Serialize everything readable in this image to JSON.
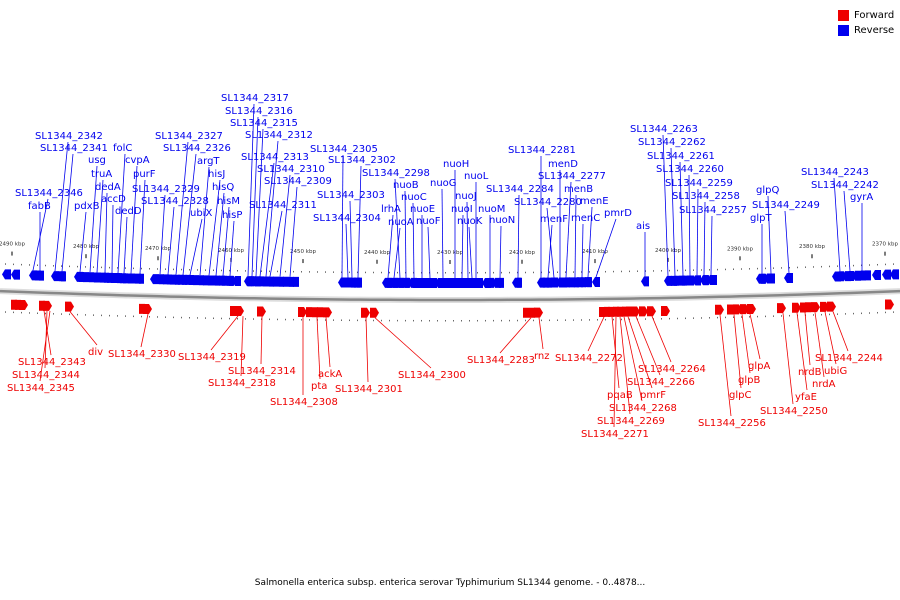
{
  "legend": {
    "forward_label": "Forward",
    "reverse_label": "Reverse",
    "forward_color": "#ee0000",
    "reverse_color": "#0000ee"
  },
  "colors": {
    "axis": "#999999",
    "label_line": "#ee0000",
    "label_line_rev": "#0000ee"
  },
  "caption": "Salmonella enterica subsp. enterica serovar Typhimurium SL1344 genome. - 0..4878...",
  "scale_labels": [
    "2490 kbp",
    "2480 kbp",
    "2470 kbp",
    "2460 kbp",
    "2450 kbp",
    "2440 kbp",
    "2430 kbp",
    "2420 kbp",
    "2410 kbp",
    "2400 kbp",
    "2390 kbp",
    "2380 kbp",
    "2370 kbp"
  ],
  "reverse_genes": [
    {
      "label": "SL1344_2346",
      "gx": 33
    },
    {
      "label": "fabB",
      "gx": 40
    },
    {
      "label": "SL1344_2342",
      "gx": 55
    },
    {
      "label": "SL1344_2341",
      "gx": 62
    },
    {
      "label": "pdxB",
      "gx": 80
    },
    {
      "label": "usg",
      "gx": 90
    },
    {
      "label": "truA",
      "gx": 97
    },
    {
      "label": "dedA",
      "gx": 105
    },
    {
      "label": "accD",
      "gx": 112
    },
    {
      "label": "folC",
      "gx": 118
    },
    {
      "label": "dedD",
      "gx": 124
    },
    {
      "label": "cvpA",
      "gx": 131
    },
    {
      "label": "purF",
      "gx": 140
    },
    {
      "label": "SL1344_2329",
      "gx": 160
    },
    {
      "label": "SL1344_2328",
      "gx": 168
    },
    {
      "label": "SL1344_2327",
      "gx": 176
    },
    {
      "label": "SL1344_2326",
      "gx": 183
    },
    {
      "label": "ubiX",
      "gx": 190
    },
    {
      "label": "argT",
      "gx": 200
    },
    {
      "label": "hisJ",
      "gx": 209
    },
    {
      "label": "hisQ",
      "gx": 216
    },
    {
      "label": "hisM",
      "gx": 223
    },
    {
      "label": "hisP",
      "gx": 230
    },
    {
      "label": "SL1344_2317",
      "gx": 248
    },
    {
      "label": "SL1344_2316",
      "gx": 252
    },
    {
      "label": "SL1344_2315",
      "gx": 256
    },
    {
      "label": "SL1344_2313",
      "gx": 260
    },
    {
      "label": "SL1344_2312",
      "gx": 266
    },
    {
      "label": "SL1344_2311",
      "gx": 270
    },
    {
      "label": "SL1344_2310",
      "gx": 280
    },
    {
      "label": "SL1344_2309",
      "gx": 290
    },
    {
      "label": "SL1344_2305",
      "gx": 342
    },
    {
      "label": "SL1344_2304",
      "gx": 348
    },
    {
      "label": "SL1344_2303",
      "gx": 352
    },
    {
      "label": "SL1344_2302",
      "gx": 358
    },
    {
      "label": "lrhA",
      "gx": 388
    },
    {
      "label": "nuoA",
      "gx": 394
    },
    {
      "label": "SL1344_2298",
      "gx": 400
    },
    {
      "label": "nuoB",
      "gx": 406
    },
    {
      "label": "nuoC",
      "gx": 414
    },
    {
      "label": "nuoE",
      "gx": 422
    },
    {
      "label": "nuoF",
      "gx": 430
    },
    {
      "label": "nuoG",
      "gx": 443
    },
    {
      "label": "nuoH",
      "gx": 455
    },
    {
      "label": "nuoI",
      "gx": 462
    },
    {
      "label": "nuoJ",
      "gx": 468
    },
    {
      "label": "nuoK",
      "gx": 472
    },
    {
      "label": "nuoL",
      "gx": 476
    },
    {
      "label": "nuoM",
      "gx": 490
    },
    {
      "label": "nuoN",
      "gx": 500
    },
    {
      "label": "SL1344_2284",
      "gx": 518
    },
    {
      "label": "SL1344_2281",
      "gx": 541
    },
    {
      "label": "menF",
      "gx": 548
    },
    {
      "label": "SL1344_2280",
      "gx": 554
    },
    {
      "label": "menD",
      "gx": 560
    },
    {
      "label": "SL1344_2277",
      "gx": 566
    },
    {
      "label": "menB",
      "gx": 575
    },
    {
      "label": "menC",
      "gx": 582
    },
    {
      "label": "menE",
      "gx": 588
    },
    {
      "label": "pmrD",
      "gx": 596
    },
    {
      "label": "ais",
      "gx": 645
    },
    {
      "label": "SL1344_2263",
      "gx": 668
    },
    {
      "label": "SL1344_2262",
      "gx": 675
    },
    {
      "label": "SL1344_2261",
      "gx": 683
    },
    {
      "label": "SL1344_2260",
      "gx": 690
    },
    {
      "label": "SL1344_2259",
      "gx": 697
    },
    {
      "label": "SL1344_2258",
      "gx": 704
    },
    {
      "label": "SL1344_2257",
      "gx": 711
    },
    {
      "label": "glpT",
      "gx": 762
    },
    {
      "label": "glpQ",
      "gx": 771
    },
    {
      "label": "SL1344_2249",
      "gx": 789
    },
    {
      "label": "SL1344_2243",
      "gx": 840
    },
    {
      "label": "SL1344_2242",
      "gx": 850
    },
    {
      "label": "gyrA",
      "gx": 862
    }
  ],
  "forward_genes": [
    {
      "label": "SL1344_2343",
      "gx": 44
    },
    {
      "label": "SL1344_2344",
      "gx": 47
    },
    {
      "label": "SL1344_2345",
      "gx": 50
    },
    {
      "label": "div",
      "gx": 70
    },
    {
      "label": "SL1344_2330",
      "gx": 148
    },
    {
      "label": "SL1344_2319",
      "gx": 238
    },
    {
      "label": "SL1344_2318",
      "gx": 243
    },
    {
      "label": "SL1344_2314",
      "gx": 262
    },
    {
      "label": "SL1344_2308",
      "gx": 303
    },
    {
      "label": "pta",
      "gx": 317
    },
    {
      "label": "ackA",
      "gx": 326
    },
    {
      "label": "SL1344_2301",
      "gx": 366
    },
    {
      "label": "SL1344_2300",
      "gx": 375
    },
    {
      "label": "SL1344_2283",
      "gx": 531
    },
    {
      "label": "rnz",
      "gx": 539
    },
    {
      "label": "SL1344_2272",
      "gx": 604
    },
    {
      "label": "pqaB",
      "gx": 612
    },
    {
      "label": "SL1344_2271",
      "gx": 616
    },
    {
      "label": "SL1344_2269",
      "gx": 620
    },
    {
      "label": "SL1344_2268",
      "gx": 624
    },
    {
      "label": "pmrF",
      "gx": 628
    },
    {
      "label": "SL1344_2266",
      "gx": 636
    },
    {
      "label": "SL1344_2264",
      "gx": 652
    },
    {
      "label": "SL1344_2256",
      "gx": 720
    },
    {
      "label": "glpC",
      "gx": 734
    },
    {
      "label": "glpB",
      "gx": 742
    },
    {
      "label": "glpA",
      "gx": 750
    },
    {
      "label": "SL1344_2250",
      "gx": 783
    },
    {
      "label": "yfaE",
      "gx": 797
    },
    {
      "label": "nrdB",
      "gx": 805
    },
    {
      "label": "nrdA",
      "gx": 815
    },
    {
      "label": "ubiG",
      "gx": 825
    },
    {
      "label": "SL1344_2244",
      "gx": 833
    }
  ]
}
